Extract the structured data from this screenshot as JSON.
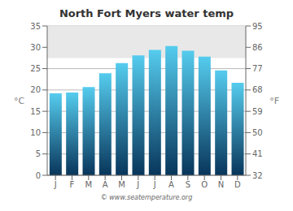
{
  "chart_data": {
    "type": "bar",
    "title": "North Fort Myers water temp",
    "categories": [
      "J",
      "F",
      "M",
      "A",
      "M",
      "J",
      "J",
      "A",
      "S",
      "O",
      "N",
      "D"
    ],
    "values": [
      19.2,
      19.4,
      20.7,
      23.9,
      26.3,
      28.1,
      29.4,
      30.3,
      29.2,
      27.8,
      24.6,
      21.7
    ],
    "color": {
      "top": "#55ccee",
      "bottom": "#08355a"
    },
    "ylabel": "°C",
    "ylim": [
      0,
      35
    ],
    "yticks": [
      0,
      5,
      10,
      15,
      20,
      25,
      30,
      35
    ],
    "y2label": "°F",
    "y2lim": [
      32,
      95
    ],
    "y2ticks": [
      32,
      41,
      50,
      59,
      68,
      77,
      86,
      95
    ],
    "band": {
      "ymin": 27.5,
      "ymax": 35,
      "color": "#e8e8e8"
    },
    "grid": true,
    "annotations": [
      "© www.seatemperature.org"
    ]
  }
}
